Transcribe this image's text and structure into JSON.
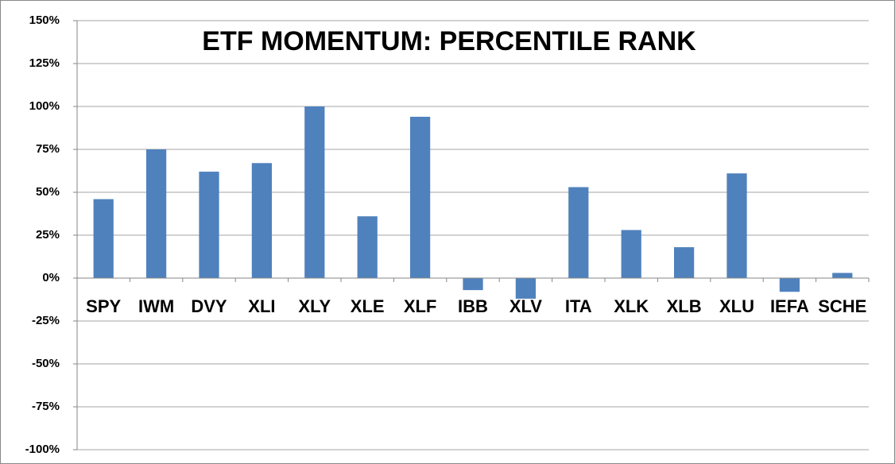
{
  "chart_data": {
    "type": "bar",
    "title": "ETF MOMENTUM: PERCENTILE RANK",
    "categories": [
      "SPY",
      "IWM",
      "DVY",
      "XLI",
      "XLY",
      "XLE",
      "XLF",
      "IBB",
      "XLV",
      "ITA",
      "XLK",
      "XLB",
      "XLU",
      "IEFA",
      "SCHE"
    ],
    "values": [
      46,
      75,
      62,
      67,
      100,
      36,
      94,
      -7,
      -12,
      53,
      28,
      18,
      61,
      -8,
      3
    ],
    "color": "#4f81bd",
    "ylim": [
      -100,
      150
    ],
    "yticks": [
      {
        "value": -100,
        "label": "-100%"
      },
      {
        "value": -75,
        "label": "-75%"
      },
      {
        "value": -50,
        "label": "-50%"
      },
      {
        "value": -25,
        "label": "-25%"
      },
      {
        "value": 0,
        "label": "0%"
      },
      {
        "value": 25,
        "label": "25%"
      },
      {
        "value": 50,
        "label": "50%"
      },
      {
        "value": 75,
        "label": "75%"
      },
      {
        "value": 100,
        "label": "100%"
      },
      {
        "value": 125,
        "label": "125%"
      },
      {
        "value": 150,
        "label": "150%"
      }
    ],
    "grid": true
  }
}
